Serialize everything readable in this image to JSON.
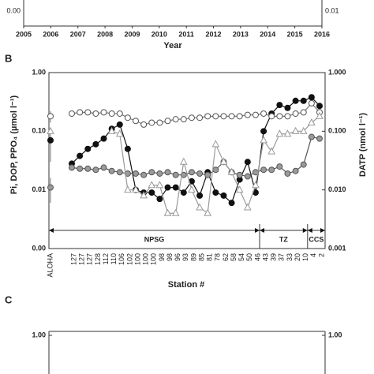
{
  "chart_data": [
    {
      "type": "axis",
      "panel": null,
      "xlabel": "Year",
      "xlim": [
        2005,
        2016
      ],
      "xticks": [
        2005,
        2006,
        2007,
        2008,
        2009,
        2010,
        2011,
        2012,
        2013,
        2014,
        2015,
        2016
      ],
      "yticks": [
        {
          "value": 0,
          "label": "0.00"
        }
      ],
      "y2ticks": [
        {
          "value": 0,
          "label": "0.01"
        }
      ]
    },
    {
      "type": "line",
      "panel": "B",
      "xlabel": "Station #",
      "ylabel": "Pi, DOP, PPO₄ (µmol l⁻¹)",
      "y2label": "DATP (nmol l⁻¹)",
      "log_scale": true,
      "reference": "ALOHA",
      "categories": [
        "127",
        "127",
        "127",
        "128",
        "112",
        "110",
        "106",
        "102",
        "100",
        "100",
        "100",
        "98",
        "98",
        "96",
        "93",
        "89",
        "85",
        "81",
        "78",
        "62",
        "58",
        "54",
        "50",
        "46",
        "43",
        "39",
        "37",
        "33",
        "20",
        "10",
        "4",
        "2"
      ],
      "ylim": [
        0.001,
        1
      ],
      "yticks": [
        {
          "value": 0.001,
          "label": "0.00"
        },
        {
          "value": 0.01,
          "label": "0.01"
        },
        {
          "value": 0.1,
          "label": "0.10"
        },
        {
          "value": 1,
          "label": "1.00"
        }
      ],
      "y2lim": [
        0.001,
        1
      ],
      "y2ticks": [
        {
          "value": 0.001,
          "label": "0.001"
        },
        {
          "value": 0.01,
          "label": "0.010"
        },
        {
          "value": 0.1,
          "label": "0.100"
        },
        {
          "value": 1,
          "label": "1.000"
        }
      ],
      "regions": [
        "NPSG",
        "TZ",
        "CCS"
      ],
      "series": [
        {
          "color": "#111111",
          "marker": "circle",
          "fill": "#111111",
          "reference_value": 0.07,
          "reference_error": 0.04,
          "values": [
            0.028,
            0.038,
            0.05,
            0.06,
            0.075,
            0.11,
            0.13,
            0.05,
            0.01,
            0.009,
            0.009,
            0.007,
            0.011,
            0.011,
            0.009,
            0.014,
            0.008,
            0.02,
            0.009,
            0.008,
            0.006,
            0.015,
            0.03,
            0.009,
            0.1,
            0.2,
            0.28,
            0.25,
            0.33,
            0.33,
            0.38,
            0.27
          ]
        },
        {
          "color": "#777777",
          "marker": "circle",
          "fill": "#ffffff",
          "reference_value": 0.18,
          "reference_error": 0.04,
          "values": [
            0.2,
            0.21,
            0.21,
            0.2,
            0.21,
            0.2,
            0.2,
            0.17,
            0.15,
            0.13,
            0.14,
            0.14,
            0.15,
            0.16,
            0.16,
            0.17,
            0.17,
            0.18,
            0.18,
            0.18,
            0.18,
            0.18,
            0.19,
            0.19,
            0.2,
            0.18,
            0.18,
            0.18,
            0.2,
            0.21,
            0.3,
            0.21
          ]
        },
        {
          "color": "#555555",
          "marker": "circle",
          "fill": "#9a9a9a",
          "reference_value": 0.011,
          "reference_error": 0.005,
          "values": [
            0.024,
            0.023,
            0.023,
            0.022,
            0.024,
            0.021,
            0.02,
            0.019,
            0.019,
            0.018,
            0.02,
            0.019,
            0.02,
            0.018,
            0.018,
            0.02,
            0.019,
            0.018,
            0.022,
            0.03,
            0.02,
            0.018,
            0.017,
            0.02,
            0.022,
            0.022,
            0.025,
            0.019,
            0.021,
            0.027,
            0.08,
            0.075
          ]
        },
        {
          "color": "#9a9a9a",
          "marker": "triangle",
          "fill": "#ffffff",
          "axis": "y2",
          "reference_value": 0.1,
          "values": [
            null,
            null,
            null,
            null,
            null,
            0.1,
            0.09,
            0.01,
            0.01,
            0.008,
            0.012,
            0.012,
            0.004,
            0.004,
            0.03,
            0.01,
            0.005,
            0.004,
            0.06,
            0.03,
            0.02,
            0.01,
            0.005,
            0.012,
            0.07,
            0.045,
            0.09,
            0.09,
            0.1,
            0.1,
            0.14,
            0.18
          ]
        }
      ]
    },
    {
      "type": "axis",
      "panel": "C",
      "yticks": [
        {
          "value": 1,
          "label": "1.00"
        }
      ],
      "y2ticks": [
        {
          "value": 1,
          "label": "1.00"
        }
      ]
    }
  ]
}
